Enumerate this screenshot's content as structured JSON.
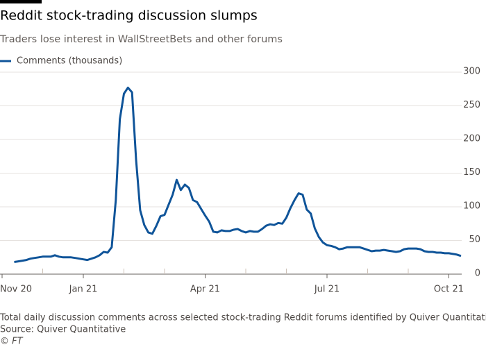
{
  "chart_data": {
    "type": "line",
    "title": "Reddit stock-trading discussion slumps",
    "subtitle": "Traders lose interest in WallStreetBets and other forums",
    "note": "Total daily discussion comments across selected stock-trading Reddit forums identified by Quiver Quantitative",
    "source": "Source: Quiver Quantitative",
    "credit": "© FT",
    "categories": [
      "Nov 20",
      null,
      null,
      null,
      null,
      null,
      null,
      null,
      null,
      null,
      null,
      null,
      null,
      null,
      null,
      null,
      null,
      null,
      null,
      null,
      "Jan 21",
      null,
      null,
      null,
      null,
      null,
      null,
      null,
      null,
      null,
      null,
      null,
      null,
      null,
      null,
      null,
      null,
      null,
      null,
      null,
      null,
      null,
      null,
      null,
      null,
      null,
      null,
      null,
      null,
      null,
      "Apr 21",
      null,
      null,
      null,
      null,
      null,
      null,
      null,
      null,
      null,
      null,
      null,
      null,
      null,
      null,
      null,
      null,
      null,
      null,
      null,
      null,
      null,
      null,
      null,
      null,
      null,
      null,
      null,
      null,
      null,
      "Jul 21",
      null,
      null,
      null,
      null,
      null,
      null,
      null,
      null,
      null,
      null,
      null,
      null,
      null,
      null,
      null,
      null,
      null,
      null,
      null,
      null,
      null,
      null,
      null,
      null,
      null,
      null,
      null,
      null,
      null,
      "Oct 21",
      null,
      null,
      null
    ],
    "series": [
      {
        "name": "Comments (thousands)",
        "color": "#0f5499",
        "values": [
          null,
          null,
          null,
          18,
          19,
          20,
          21,
          23,
          24,
          25,
          26,
          26,
          26,
          28,
          26,
          25,
          25,
          25,
          24,
          23,
          22,
          21,
          23,
          25,
          28,
          33,
          32,
          40,
          110,
          230,
          268,
          277,
          270,
          170,
          95,
          73,
          62,
          60,
          72,
          86,
          88,
          103,
          118,
          140,
          125,
          133,
          128,
          110,
          107,
          97,
          87,
          78,
          63,
          62,
          65,
          64,
          64,
          66,
          67,
          64,
          62,
          64,
          63,
          63,
          67,
          72,
          74,
          73,
          76,
          75,
          84,
          98,
          110,
          120,
          118,
          96,
          90,
          68,
          55,
          47,
          43,
          42,
          40,
          37,
          38,
          40,
          40,
          40,
          40,
          38,
          36,
          34,
          35,
          35,
          36,
          35,
          34,
          33,
          34,
          37,
          38,
          38,
          38,
          37,
          34,
          33,
          33,
          32,
          32,
          31,
          31,
          30,
          29,
          27
        ]
      }
    ],
    "ylim": [
      0,
      300
    ],
    "yticks": [
      0,
      50,
      100,
      150,
      200,
      250,
      300
    ],
    "grid": true
  }
}
